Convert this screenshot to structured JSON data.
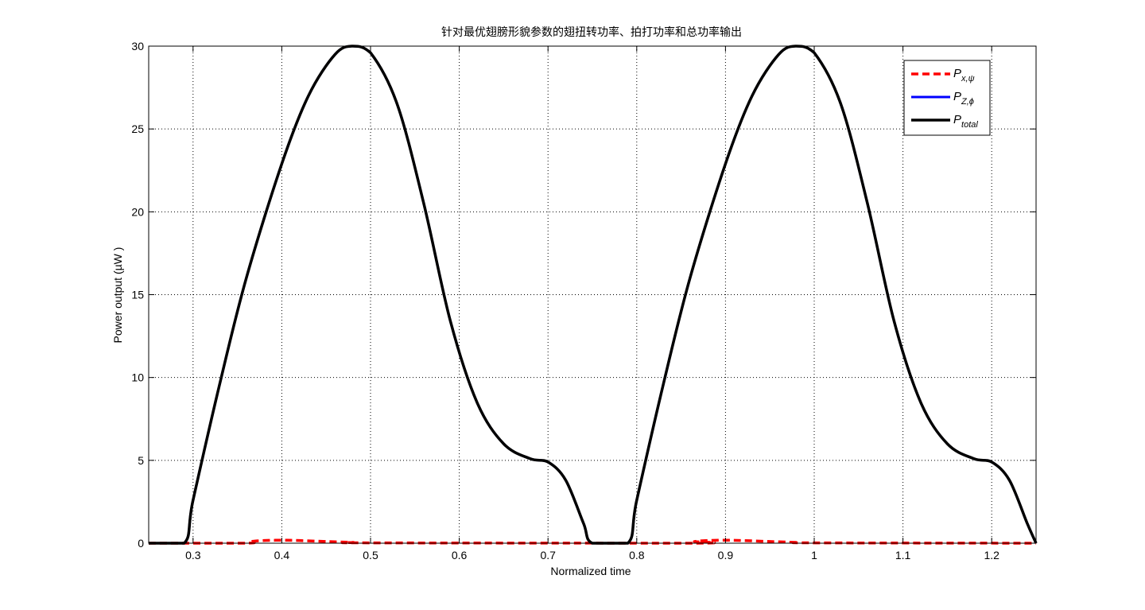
{
  "chart_data": {
    "type": "line",
    "title": "针对最优翅膀形貌参数的翅扭转功率、拍打功率和总功率输出",
    "xlabel": "Normalized time",
    "ylabel": "Power output (µW )",
    "xlim": [
      0.25,
      1.25
    ],
    "ylim": [
      0,
      30
    ],
    "xticks": [
      0.3,
      0.4,
      0.5,
      0.6,
      0.7,
      0.8,
      0.9,
      1,
      1.1,
      1.2
    ],
    "xtick_labels": [
      "0.3",
      "0.4",
      "0.5",
      "0.6",
      "0.7",
      "0.8",
      "0.9",
      "1",
      "1.1",
      "1.2"
    ],
    "yticks": [
      0,
      5,
      10,
      15,
      20,
      25,
      30
    ],
    "ytick_labels": [
      "0",
      "5",
      "10",
      "15",
      "20",
      "25",
      "30"
    ],
    "grid": true,
    "legend_position": "top-right",
    "series": [
      {
        "name": "P_{x,ψ}",
        "legend": {
          "main": "P",
          "sub": "x,ψ"
        },
        "color": "#ff0000",
        "style": "dashed",
        "x": [
          0.25,
          0.36,
          0.365,
          0.38,
          0.4,
          0.42,
          0.45,
          0.48,
          0.5,
          0.86,
          0.865,
          0.88,
          0.9,
          0.92,
          0.95,
          0.98,
          1.0,
          1.25
        ],
        "y": [
          0,
          0,
          0.1,
          0.16,
          0.18,
          0.16,
          0.1,
          0.05,
          0.02,
          0,
          0.1,
          0.16,
          0.18,
          0.16,
          0.1,
          0.05,
          0.02,
          0
        ]
      },
      {
        "name": "P_{Z,ϕ}",
        "legend": {
          "main": "P",
          "sub": "Z,ϕ"
        },
        "color": "#0000ff",
        "style": "solid",
        "x": [
          0.25,
          0.29,
          0.3,
          0.33,
          0.36,
          0.4,
          0.43,
          0.46,
          0.48,
          0.5,
          0.53,
          0.56,
          0.59,
          0.62,
          0.65,
          0.68,
          0.7,
          0.72,
          0.74,
          0.75,
          0.79,
          0.8,
          0.83,
          0.86,
          0.9,
          0.93,
          0.96,
          0.98,
          1.0,
          1.03,
          1.06,
          1.09,
          1.12,
          1.15,
          1.18,
          1.2,
          1.22,
          1.24,
          1.25
        ],
        "y": [
          0,
          0,
          2.6,
          9.6,
          16.0,
          22.9,
          27.0,
          29.5,
          30.0,
          29.6,
          26.5,
          20.5,
          13.4,
          8.5,
          6.0,
          5.1,
          4.9,
          3.8,
          1.2,
          0,
          0,
          2.6,
          9.6,
          16.0,
          22.9,
          27.0,
          29.5,
          30.0,
          29.6,
          26.5,
          20.5,
          13.4,
          8.5,
          6.0,
          5.1,
          4.9,
          3.8,
          1.2,
          0
        ]
      },
      {
        "name": "P_{total}",
        "legend": {
          "main": "P",
          "sub": "total"
        },
        "color": "#000000",
        "style": "solid",
        "x": [
          0.25,
          0.29,
          0.3,
          0.33,
          0.36,
          0.4,
          0.43,
          0.46,
          0.48,
          0.5,
          0.53,
          0.56,
          0.59,
          0.62,
          0.65,
          0.68,
          0.7,
          0.72,
          0.74,
          0.75,
          0.79,
          0.8,
          0.83,
          0.86,
          0.9,
          0.93,
          0.96,
          0.98,
          1.0,
          1.03,
          1.06,
          1.09,
          1.12,
          1.15,
          1.18,
          1.2,
          1.22,
          1.24,
          1.25
        ],
        "y": [
          0,
          0,
          2.6,
          9.6,
          16.0,
          22.9,
          27.0,
          29.5,
          30.0,
          29.6,
          26.5,
          20.5,
          13.4,
          8.5,
          6.0,
          5.1,
          4.9,
          3.8,
          1.2,
          0,
          0,
          2.6,
          9.6,
          16.0,
          22.9,
          27.0,
          29.5,
          30.0,
          29.6,
          26.5,
          20.5,
          13.4,
          8.5,
          6.0,
          5.1,
          4.9,
          3.8,
          1.2,
          0
        ]
      }
    ]
  }
}
